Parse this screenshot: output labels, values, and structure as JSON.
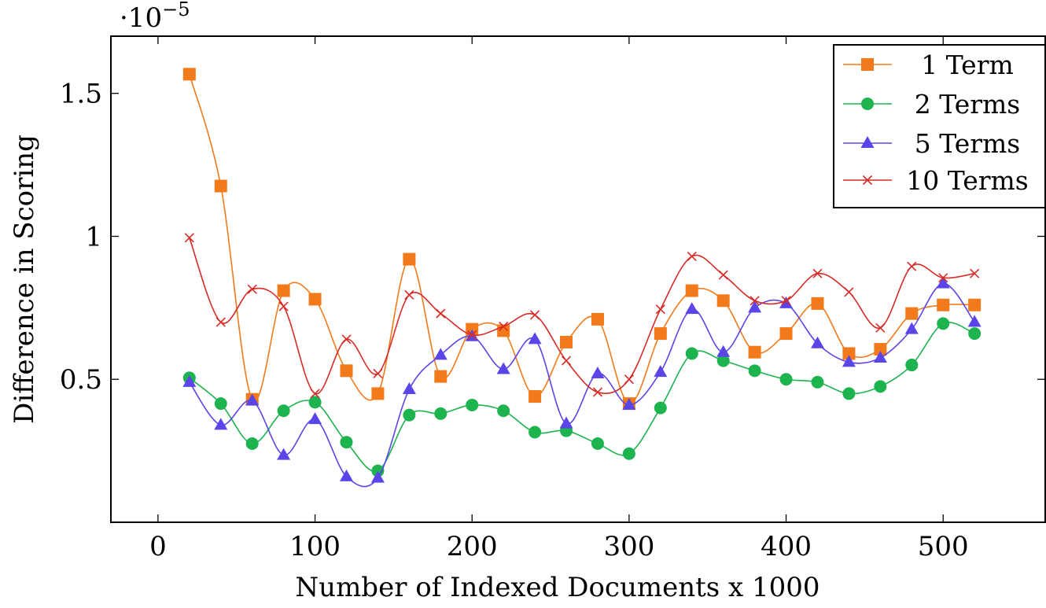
{
  "chart_data": {
    "type": "line",
    "xlabel": "Number of Indexed Documents x 1000",
    "ylabel": "Difference in Scoring",
    "y_multiplier": {
      "base": "·10",
      "exponent": "−5"
    },
    "xlim": [
      -30,
      565
    ],
    "ylim": [
      0.0,
      1.7
    ],
    "x_ticks": [
      0,
      100,
      200,
      300,
      400,
      500
    ],
    "x_tick_labels": [
      "0",
      "100",
      "200",
      "300",
      "400",
      "500"
    ],
    "y_ticks": [
      0.5,
      1.0,
      1.5
    ],
    "y_tick_labels": [
      "0.5",
      "1",
      "1.5"
    ],
    "grid": false,
    "legend_position": "top-right",
    "x": [
      20,
      40,
      60,
      80,
      100,
      120,
      140,
      160,
      180,
      200,
      220,
      240,
      260,
      280,
      300,
      320,
      340,
      360,
      380,
      400,
      420,
      440,
      460,
      480,
      500,
      520
    ],
    "series": [
      {
        "name": "1 Term",
        "color": "#f27a1a",
        "marker": "square",
        "values": [
          1.567,
          1.176,
          0.43,
          0.81,
          0.78,
          0.53,
          0.45,
          0.92,
          0.51,
          0.675,
          0.67,
          0.44,
          0.63,
          0.71,
          0.415,
          0.66,
          0.81,
          0.775,
          0.595,
          0.66,
          0.765,
          0.59,
          0.605,
          0.73,
          0.76,
          0.76
        ]
      },
      {
        "name": "2 Terms",
        "color": "#1db34e",
        "marker": "circle",
        "values": [
          0.505,
          0.415,
          0.275,
          0.39,
          0.42,
          0.28,
          0.18,
          0.375,
          0.38,
          0.41,
          0.39,
          0.315,
          0.32,
          0.275,
          0.24,
          0.4,
          0.59,
          0.565,
          0.53,
          0.5,
          0.49,
          0.45,
          0.475,
          0.55,
          0.695,
          0.66
        ]
      },
      {
        "name": "5 Terms",
        "color": "#5a45e8",
        "marker": "triangle",
        "values": [
          0.49,
          0.34,
          0.425,
          0.235,
          0.36,
          0.16,
          0.155,
          0.465,
          0.585,
          0.65,
          0.535,
          0.64,
          0.345,
          0.52,
          0.41,
          0.525,
          0.745,
          0.595,
          0.75,
          0.765,
          0.625,
          0.56,
          0.575,
          0.675,
          0.835,
          0.7
        ]
      },
      {
        "name": "10 Terms",
        "color": "#d62b27",
        "marker": "cross",
        "values": [
          0.995,
          0.7,
          0.815,
          0.755,
          0.45,
          0.64,
          0.52,
          0.795,
          0.73,
          0.655,
          0.685,
          0.725,
          0.565,
          0.455,
          0.5,
          0.745,
          0.93,
          0.865,
          0.775,
          0.775,
          0.87,
          0.805,
          0.68,
          0.895,
          0.855,
          0.87
        ]
      }
    ]
  }
}
